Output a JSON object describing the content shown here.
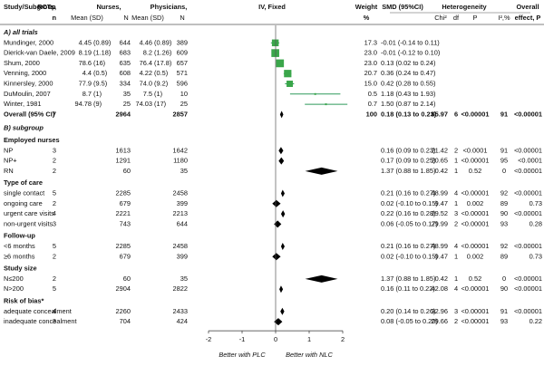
{
  "chart_data": {
    "type": "forest",
    "headers": {
      "study": "Study/Subgroup",
      "rcts": [
        "RCTs,",
        "n"
      ],
      "nurses": "Nurses,",
      "physicians": "Physicians,",
      "mean_sd": "Mean (SD)",
      "n": "N",
      "plot": "IV, Fixed",
      "weight": [
        "Weight",
        "%"
      ],
      "smd": "SMD (95%CI)",
      "heterogeneity": "Heterogeneity",
      "chi2": "Chi²",
      "df": "df",
      "p": "P",
      "i2": "I²,%",
      "overall": [
        "Overall",
        "effect, P"
      ]
    },
    "xlim": [
      -2,
      2
    ],
    "xticks": [
      -2,
      -1,
      0,
      1,
      2
    ],
    "x_left_label": "Better with PLC",
    "x_right_label": "Better with NLC",
    "study_color": "#3aa64a",
    "ci_color": "#2e9a5a",
    "diamond_color": "#000000",
    "rows": [
      {
        "kind": "section",
        "label": "A) all trials"
      },
      {
        "kind": "study",
        "label": "Mundinger, 2000",
        "nurse_mean": "4.45",
        "nurse_sd": "(0.89)",
        "nurse_n": "644",
        "phys_mean": "4.46",
        "phys_sd": "(0.89)",
        "phys_n": "389",
        "weight": "17.3",
        "effect_label": "-0.01 (-0.14 to 0.11)",
        "smd": -0.01,
        "ci": [
          -0.14,
          0.11
        ]
      },
      {
        "kind": "study",
        "label": "Dierick-van Daele, 2009",
        "nurse_mean": "8.19",
        "nurse_sd": "(1.18)",
        "nurse_n": "683",
        "phys_mean": "8.2",
        "phys_sd": "(1.26)",
        "phys_n": "609",
        "weight": "23.0",
        "effect_label": "-0.01 (-0.12 to 0.10)",
        "smd": -0.01,
        "ci": [
          -0.12,
          0.1
        ]
      },
      {
        "kind": "study",
        "label": "Shum, 2000",
        "nurse_mean": "78.6",
        "nurse_sd": "(16)",
        "nurse_n": "635",
        "phys_mean": "76.4",
        "phys_sd": "(17.8)",
        "phys_n": "657",
        "weight": "23.0",
        "effect_label": "0.13 (0.02 to 0.24)",
        "smd": 0.13,
        "ci": [
          0.02,
          0.24
        ]
      },
      {
        "kind": "study",
        "label": "Venning, 2000",
        "nurse_mean": "4.4",
        "nurse_sd": "(0.5)",
        "nurse_n": "608",
        "phys_mean": "4.22",
        "phys_sd": "(0.5)",
        "phys_n": "571",
        "weight": "20.7",
        "effect_label": "0.36 (0.24 to 0.47)",
        "smd": 0.36,
        "ci": [
          0.24,
          0.47
        ]
      },
      {
        "kind": "study",
        "label": "Kinnersley, 2000",
        "nurse_mean": "77.9",
        "nurse_sd": "(9.5)",
        "nurse_n": "334",
        "phys_mean": "74.0",
        "phys_sd": "(9.2)",
        "phys_n": "596",
        "weight": "15.0",
        "effect_label": "0.42 (0.28 to 0.55)",
        "smd": 0.42,
        "ci": [
          0.28,
          0.55
        ]
      },
      {
        "kind": "study",
        "label": "DuMoulin, 2007",
        "nurse_mean": "8.7",
        "nurse_sd": "(1)",
        "nurse_n": "35",
        "phys_mean": "7.5",
        "phys_sd": "(1)",
        "phys_n": "10",
        "weight": "0.5",
        "effect_label": "1.18 (0.43 to 1.93)",
        "smd": 1.18,
        "ci": [
          0.43,
          1.93
        ]
      },
      {
        "kind": "study",
        "label": "Winter, 1981",
        "nurse_mean": "94.78",
        "nurse_sd": "(9)",
        "nurse_n": "25",
        "phys_mean": "74.03",
        "phys_sd": "(17)",
        "phys_n": "25",
        "weight": "0.7",
        "effect_label": "1.50 (0.87 to 2.14)",
        "smd": 1.5,
        "ci": [
          0.87,
          2.14
        ]
      },
      {
        "kind": "total",
        "label": "Overall (95% CI)",
        "rcts": "7",
        "nurse_n": "2964",
        "phys_n": "2857",
        "weight": "100",
        "effect_label": "0.18 (0.13 to 0.23)",
        "smd": 0.18,
        "ci": [
          0.13,
          0.23
        ],
        "chi2": "65.97",
        "df": "6",
        "p": "<0.00001",
        "i2": "91",
        "overall_p": "<0.00001"
      },
      {
        "kind": "section",
        "label": "B) subgroup"
      },
      {
        "kind": "group",
        "label": "Employed nurses"
      },
      {
        "kind": "sub",
        "label": "NP",
        "rcts": "3",
        "nurse_n": "1613",
        "phys_n": "1642",
        "effect_label": "0.16 (0.09 to 0.23)",
        "smd": 0.16,
        "ci": [
          0.09,
          0.23
        ],
        "chi2": "21.42",
        "df": "2",
        "p": "<0.0001",
        "i2": "91",
        "overall_p": "<0.00001"
      },
      {
        "kind": "sub",
        "label": "NP+",
        "rcts": "2",
        "nurse_n": "1291",
        "phys_n": "1180",
        "effect_label": "0.17 (0.09 to 0.25)",
        "smd": 0.17,
        "ci": [
          0.09,
          0.25
        ],
        "chi2": "20.65",
        "df": "1",
        "p": "<0.00001",
        "i2": "95",
        "overall_p": "<0.0001"
      },
      {
        "kind": "sub",
        "label": "RN",
        "rcts": "2",
        "nurse_n": "60",
        "phys_n": "35",
        "effect_label": "1.37 (0.88 to 1.85)",
        "smd": 1.37,
        "ci": [
          0.88,
          1.85
        ],
        "chi2": "0.42",
        "df": "1",
        "p": "0.52",
        "i2": "0",
        "overall_p": "<0.00001"
      },
      {
        "kind": "group",
        "label": "Type of care"
      },
      {
        "kind": "sub",
        "label": "single contact",
        "rcts": "5",
        "nurse_n": "2285",
        "phys_n": "2458",
        "effect_label": "0.21 (0.16 to 0.27)",
        "smd": 0.21,
        "ci": [
          0.16,
          0.27
        ],
        "chi2": "48.99",
        "df": "4",
        "p": "<0.00001",
        "i2": "92",
        "overall_p": "<0.00001"
      },
      {
        "kind": "sub",
        "label": "ongoing care",
        "rcts": "2",
        "nurse_n": "679",
        "phys_n": "399",
        "effect_label": "0.02 (-0.10 to 0.15)",
        "smd": 0.02,
        "ci": [
          -0.1,
          0.15
        ],
        "chi2": "9.47",
        "df": "1",
        "p": "0.002",
        "i2": "89",
        "overall_p": "0.73"
      },
      {
        "kind": "sub",
        "label": "urgent care visits",
        "rcts": "4",
        "nurse_n": "2221",
        "phys_n": "2213",
        "effect_label": "0.22 (0.16 to 0.28)",
        "smd": 0.22,
        "ci": [
          0.16,
          0.28
        ],
        "chi2": "29.52",
        "df": "3",
        "p": "<0.00001",
        "i2": "90",
        "overall_p": "<0.00001"
      },
      {
        "kind": "sub",
        "label": "non-urgent visits",
        "rcts": "3",
        "nurse_n": "743",
        "phys_n": "644",
        "effect_label": "0.06 (-0.05 to 0.17)",
        "smd": 0.06,
        "ci": [
          -0.05,
          0.17
        ],
        "chi2": "29.99",
        "df": "2",
        "p": "<0.00001",
        "i2": "93",
        "overall_p": "0.28"
      },
      {
        "kind": "group",
        "label": "Follow-up"
      },
      {
        "kind": "sub",
        "label": "<6 months",
        "rcts": "5",
        "nurse_n": "2285",
        "phys_n": "2458",
        "effect_label": "0.21 (0.16 to 0.27)",
        "smd": 0.21,
        "ci": [
          0.16,
          0.27
        ],
        "chi2": "48.99",
        "df": "4",
        "p": "<0.00001",
        "i2": "92",
        "overall_p": "<0.00001"
      },
      {
        "kind": "sub",
        "label": "≥6 months",
        "rcts": "2",
        "nurse_n": "679",
        "phys_n": "399",
        "effect_label": "0.02 (-0.10 to 0.15)",
        "smd": 0.02,
        "ci": [
          -0.1,
          0.15
        ],
        "chi2": "9.47",
        "df": "1",
        "p": "0.002",
        "i2": "89",
        "overall_p": "0.73"
      },
      {
        "kind": "group",
        "label": "Study size"
      },
      {
        "kind": "sub",
        "label": "N≤200",
        "rcts": "2",
        "nurse_n": "60",
        "phys_n": "35",
        "effect_label": "1.37 (0.88 to 1.85)",
        "smd": 1.37,
        "ci": [
          0.88,
          1.85
        ],
        "chi2": "0.42",
        "df": "1",
        "p": "0.52",
        "i2": "0",
        "overall_p": "<0.00001"
      },
      {
        "kind": "sub",
        "label": "N>200",
        "rcts": "5",
        "nurse_n": "2904",
        "phys_n": "2822",
        "effect_label": "0.16 (0.11 to 0.22)",
        "smd": 0.16,
        "ci": [
          0.11,
          0.22
        ],
        "chi2": "42.08",
        "df": "4",
        "p": "<0.00001",
        "i2": "90",
        "overall_p": "<0.00001"
      },
      {
        "kind": "group",
        "label": "Risk of bias*"
      },
      {
        "kind": "sub",
        "label": "adequate concealment",
        "rcts": "4",
        "nurse_n": "2260",
        "phys_n": "2433",
        "effect_label": "0.20 (0.14 to 0.26)",
        "smd": 0.2,
        "ci": [
          0.14,
          0.26
        ],
        "chi2": "32.96",
        "df": "3",
        "p": "<0.00001",
        "i2": "91",
        "overall_p": "<0.00001"
      },
      {
        "kind": "sub",
        "label": "inadequate concealment",
        "rcts": "3",
        "nurse_n": "704",
        "phys_n": "424",
        "effect_label": "0.08 (-0.05 to 0.20)",
        "smd": 0.08,
        "ci": [
          -0.05,
          0.2
        ],
        "chi2": "29.66",
        "df": "2",
        "p": "<0.00001",
        "i2": "93",
        "overall_p": "0.22"
      }
    ]
  }
}
